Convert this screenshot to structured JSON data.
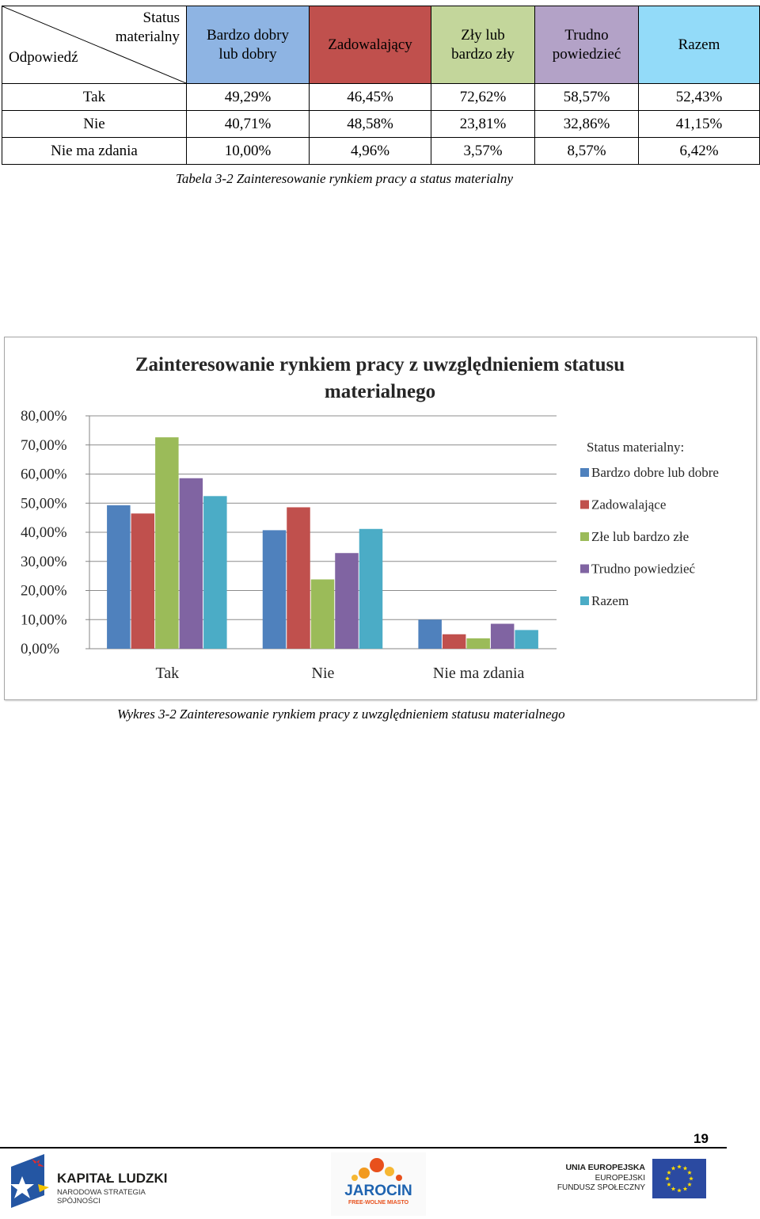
{
  "table": {
    "corner_top": [
      "Status",
      "materialny"
    ],
    "corner_bottom": "Odpowiedź",
    "headers": [
      {
        "label": [
          "Bardzo dobry",
          "lub dobry"
        ],
        "color": "#8eb4e3"
      },
      {
        "label": [
          "Zadowalający"
        ],
        "color": "#c0504d"
      },
      {
        "label": [
          "Zły lub",
          "bardzo zły"
        ],
        "color": "#c3d69b"
      },
      {
        "label": [
          "Trudno",
          "powiedzieć"
        ],
        "color": "#b3a2c7"
      },
      {
        "label": [
          "Razem"
        ],
        "color": "#93dbf9"
      }
    ],
    "rows": [
      {
        "label": "Tak",
        "values": [
          "49,29%",
          "46,45%",
          "72,62%",
          "58,57%",
          "52,43%"
        ]
      },
      {
        "label": "Nie",
        "values": [
          "40,71%",
          "48,58%",
          "23,81%",
          "32,86%",
          "41,15%"
        ]
      },
      {
        "label": "Nie ma zdania",
        "values": [
          "10,00%",
          "4,96%",
          "3,57%",
          "8,57%",
          "6,42%"
        ]
      }
    ],
    "caption": "Tabela 3-2 Zainteresowanie rynkiem pracy a  status materialny"
  },
  "chart_data": {
    "type": "bar",
    "title": [
      "Zainteresowanie rynkiem pracy z uwzględnieniem statusu",
      "materialnego"
    ],
    "categories": [
      "Tak",
      "Nie",
      "Nie ma zdania"
    ],
    "series": [
      {
        "name": "Bardzo dobre lub dobre",
        "color": "#4f81bd",
        "values": [
          49.29,
          40.71,
          10.0
        ]
      },
      {
        "name": "Zadowalające",
        "color": "#c0504d",
        "values": [
          46.45,
          48.58,
          4.96
        ]
      },
      {
        "name": "Złe lub bardzo złe",
        "color": "#9bbb59",
        "values": [
          72.62,
          23.81,
          3.57
        ]
      },
      {
        "name": "Trudno powiedzieć",
        "color": "#8064a2",
        "values": [
          58.57,
          32.86,
          8.57
        ]
      },
      {
        "name": "Razem",
        "color": "#4bacc6",
        "values": [
          52.43,
          41.15,
          6.42
        ]
      }
    ],
    "ylim": [
      0,
      80
    ],
    "yticks": [
      "0,00%",
      "10,00%",
      "20,00%",
      "30,00%",
      "40,00%",
      "50,00%",
      "60,00%",
      "70,00%",
      "80,00%"
    ],
    "legend_title": "Status materialny:",
    "legend_position": "right",
    "grid": true
  },
  "chart_caption": "Wykres 3-2 Zainteresowanie rynkiem pracy z uwzględnieniem statusu materialnego",
  "page_number": "19",
  "footer": {
    "left_logo_title": "KAPITAŁ LUDZKI",
    "left_logo_subtitle": "NARODOWA STRATEGIA SPÓJNOŚCI",
    "center_logo_title": "JAROCIN",
    "center_logo_subtitle": "FREE-WOLNE MIASTO",
    "right_logo_line1": "UNIA EUROPEJSKA",
    "right_logo_line2": "EUROPEJSKI",
    "right_logo_line3": "FUNDUSZ SPOŁECZNY"
  }
}
